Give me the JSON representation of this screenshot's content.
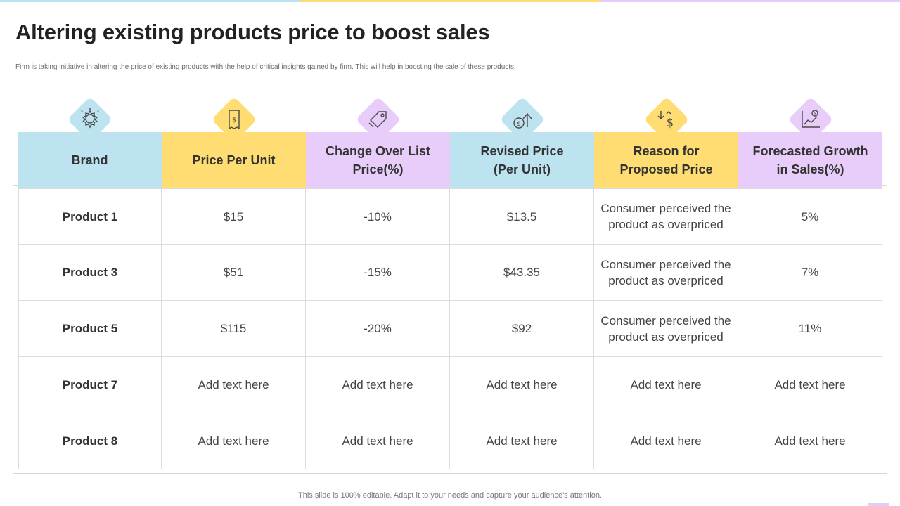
{
  "colors": {
    "blue": "#bde3f0",
    "yellow": "#ffdd72",
    "purple": "#e8cdfa",
    "top_bar": [
      "#bde3f0",
      "#ffdd72",
      "#e8cdfa"
    ]
  },
  "header": {
    "title": "Altering existing products price to boost sales",
    "subtitle": "Firm is taking initiative in altering the price of existing products with the help of critical insights gained by firm. This will help in boosting the sale of these products."
  },
  "table": {
    "columns": [
      {
        "label": "Brand",
        "icon": "award-badge-icon",
        "color": "blue"
      },
      {
        "label": "Price Per Unit",
        "icon": "price-receipt-icon",
        "color": "yellow"
      },
      {
        "label": "Change Over List\nPrice(%)",
        "icon": "price-tag-icon",
        "color": "purple"
      },
      {
        "label": "Revised Price\n(Per Unit)",
        "icon": "coin-arrow-up-icon",
        "color": "blue"
      },
      {
        "label": "Reason for\nProposed  Price",
        "icon": "dollar-arrows-icon",
        "color": "yellow"
      },
      {
        "label": "Forecasted Growth\nin Sales(%)",
        "icon": "growth-chart-icon",
        "color": "purple"
      }
    ],
    "rows": [
      [
        "Product 1",
        "$15",
        "-10%",
        "$13.5",
        "Consumer perceived the product as overpriced",
        "5%"
      ],
      [
        "Product 3",
        "$51",
        "-15%",
        "$43.35",
        "Consumer perceived the product as overpriced",
        "7%"
      ],
      [
        "Product 5",
        "$115",
        "-20%",
        "$92",
        "Consumer perceived the product as overpriced",
        "11%"
      ],
      [
        "Product 7",
        "Add text here",
        "Add text here",
        "Add text here",
        "Add text here",
        "Add text here"
      ],
      [
        "Product 8",
        "Add text here",
        "Add text here",
        "Add text here",
        "Add text here",
        "Add text here"
      ]
    ]
  },
  "footer": {
    "note": "This slide is 100% editable. Adapt it to your needs and capture your audience's attention."
  }
}
